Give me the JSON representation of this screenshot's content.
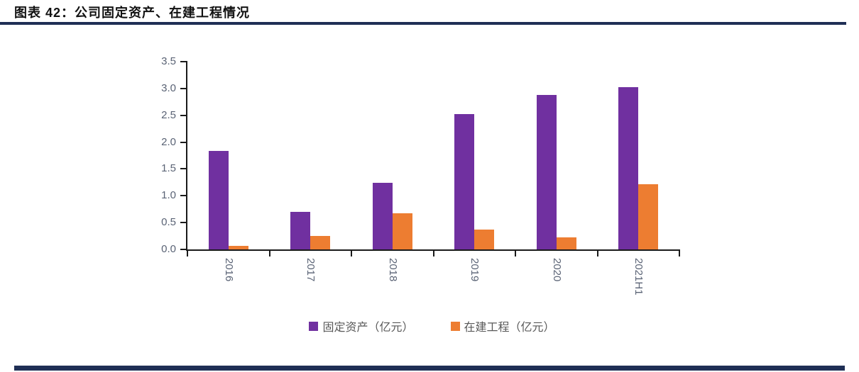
{
  "figure": {
    "title": "图表 42：公司固定资产、在建工程情况"
  },
  "chart_data": {
    "type": "bar",
    "title": "图表 42：公司固定资产、在建工程情况",
    "categories": [
      "2016",
      "2017",
      "2018",
      "2019",
      "2020",
      "2021H1"
    ],
    "series": [
      {
        "name": "固定资产（亿元）",
        "color": "#7030A0",
        "values": [
          1.83,
          0.7,
          1.24,
          2.52,
          2.88,
          3.03
        ]
      },
      {
        "name": "在建工程（亿元）",
        "color": "#ED7D31",
        "values": [
          0.07,
          0.25,
          0.67,
          0.37,
          0.22,
          1.21
        ]
      }
    ],
    "xlabel": "",
    "ylabel": "",
    "ylim": [
      0,
      3.5
    ],
    "yticks": [
      "0.0",
      "0.5",
      "1.0",
      "1.5",
      "2.0",
      "2.5",
      "3.0",
      "3.5"
    ],
    "grid": false,
    "legend_position": "bottom",
    "x_label_rotation_deg": 90
  },
  "colors": {
    "rule_navy": "#1F2F55",
    "axis": "#1a1a1a",
    "tick_label": "#5a6375",
    "legend_text": "#595959"
  }
}
